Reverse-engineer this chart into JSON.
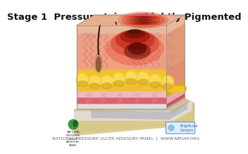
{
  "title": "Stage 1  Pressure Injury - Lightly Pigmented",
  "title_fontsize": 9.5,
  "title_color": "#111111",
  "bg_color": "#ffffff",
  "footer_text": "NATIONAL PRESSURE ULCER ADVISORY PANEL  |  WWW.NPUAP.ORG",
  "footer_fontsize": 4.5,
  "skin_top_color": "#e8b898",
  "skin_dermis_color": "#f0a080",
  "fat_color_light": "#f5d040",
  "fat_color_dark": "#d4960a",
  "muscle_color": "#e06878",
  "fascia_color": "#f5b8c8",
  "white_layer_color": "#e8e8e8",
  "bone_color": "#d4c090",
  "injury_outer": "#e03020",
  "injury_mid": "#aa1010",
  "injury_dark": "#660000",
  "hair_color": "#1a0800",
  "vessel_color": "#c07880",
  "logo_green": "#2a8a2a"
}
